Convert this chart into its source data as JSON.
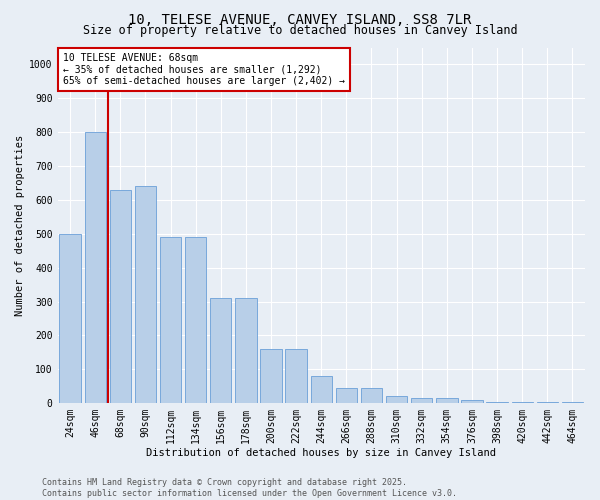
{
  "title1": "10, TELESE AVENUE, CANVEY ISLAND, SS8 7LR",
  "title2": "Size of property relative to detached houses in Canvey Island",
  "xlabel": "Distribution of detached houses by size in Canvey Island",
  "ylabel": "Number of detached properties",
  "categories": [
    "24sqm",
    "46sqm",
    "68sqm",
    "90sqm",
    "112sqm",
    "134sqm",
    "156sqm",
    "178sqm",
    "200sqm",
    "222sqm",
    "244sqm",
    "266sqm",
    "288sqm",
    "310sqm",
    "332sqm",
    "354sqm",
    "376sqm",
    "398sqm",
    "420sqm",
    "442sqm",
    "464sqm"
  ],
  "values": [
    500,
    800,
    630,
    640,
    490,
    490,
    310,
    310,
    160,
    160,
    80,
    45,
    45,
    20,
    15,
    15,
    10,
    5,
    5,
    5,
    5
  ],
  "bar_color": "#b8cfe8",
  "bar_edgecolor": "#6a9fd8",
  "vline_x_index": 2,
  "vline_color": "#cc0000",
  "annotation_line1": "10 TELESE AVENUE: 68sqm",
  "annotation_line2": "← 35% of detached houses are smaller (1,292)",
  "annotation_line3": "65% of semi-detached houses are larger (2,402) →",
  "annotation_box_edgecolor": "#cc0000",
  "annotation_box_facecolor": "#ffffff",
  "ylim": [
    0,
    1050
  ],
  "yticks": [
    0,
    100,
    200,
    300,
    400,
    500,
    600,
    700,
    800,
    900,
    1000
  ],
  "bg_color": "#e8eef5",
  "plot_bg_color": "#e8eef5",
  "footer_line1": "Contains HM Land Registry data © Crown copyright and database right 2025.",
  "footer_line2": "Contains public sector information licensed under the Open Government Licence v3.0.",
  "grid_color": "#ffffff",
  "title_fontsize": 10,
  "subtitle_fontsize": 8.5,
  "axis_label_fontsize": 7.5,
  "tick_fontsize": 7,
  "annotation_fontsize": 7,
  "footer_fontsize": 6
}
